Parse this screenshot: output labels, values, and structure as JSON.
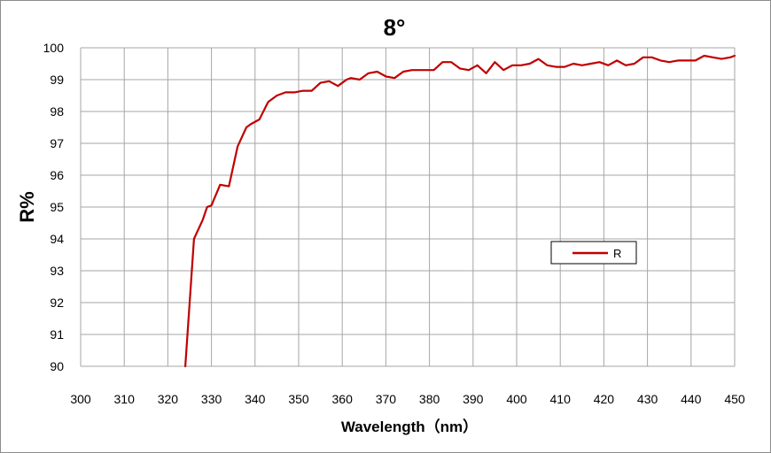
{
  "chart_data": {
    "type": "line",
    "title": "8°",
    "xlabel": "Wavelength（nm）",
    "ylabel": "R%",
    "xlim": [
      300,
      450
    ],
    "ylim": [
      90,
      100
    ],
    "x_ticks": [
      300,
      310,
      320,
      330,
      340,
      350,
      360,
      370,
      380,
      390,
      400,
      410,
      420,
      430,
      440,
      450
    ],
    "y_ticks": [
      90,
      91,
      92,
      93,
      94,
      95,
      96,
      97,
      98,
      99,
      100
    ],
    "grid": true,
    "legend_position": "center-right",
    "series": [
      {
        "name": "R",
        "color": "#c00000",
        "x": [
          324,
          325,
          326,
          328,
          329,
          330,
          332,
          334,
          336,
          338,
          339,
          341,
          343,
          345,
          347,
          349,
          351,
          353,
          355,
          357,
          359,
          361,
          362,
          364,
          366,
          368,
          370,
          372,
          374,
          376,
          378,
          379,
          381,
          383,
          385,
          387,
          389,
          391,
          393,
          395,
          397,
          399,
          401,
          403,
          405,
          407,
          409,
          411,
          413,
          415,
          417,
          419,
          421,
          423,
          425,
          427,
          429,
          431,
          433,
          435,
          437,
          439,
          441,
          443,
          445,
          447,
          449,
          450
        ],
        "values": [
          90.0,
          92.0,
          94.0,
          94.6,
          95.0,
          95.05,
          95.7,
          95.65,
          96.9,
          97.5,
          97.6,
          97.75,
          98.3,
          98.5,
          98.6,
          98.6,
          98.65,
          98.65,
          98.9,
          98.95,
          98.8,
          99.0,
          99.05,
          99.0,
          99.2,
          99.25,
          99.1,
          99.05,
          99.25,
          99.3,
          99.3,
          99.3,
          99.3,
          99.55,
          99.55,
          99.35,
          99.3,
          99.45,
          99.2,
          99.55,
          99.3,
          99.45,
          99.45,
          99.5,
          99.65,
          99.45,
          99.4,
          99.4,
          99.5,
          99.45,
          99.5,
          99.55,
          99.45,
          99.6,
          99.45,
          99.5,
          99.7,
          99.7,
          99.6,
          99.55,
          99.6,
          99.6,
          99.6,
          99.75,
          99.7,
          99.65,
          99.7,
          99.75
        ]
      }
    ]
  }
}
